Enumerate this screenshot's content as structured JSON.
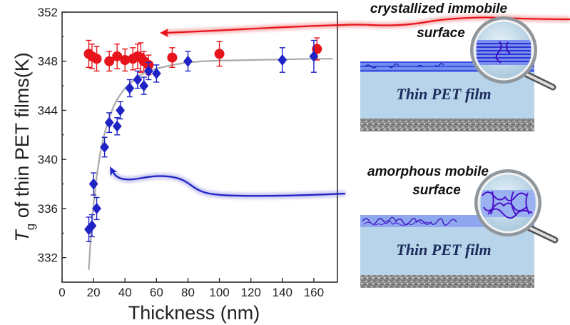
{
  "chart_data": {
    "type": "scatter",
    "xlabel": "Thickness (nm)",
    "ylabel_main": "T",
    "ylabel_sub": "g",
    "ylabel_rest": " of thin PET films(K)",
    "xlim": [
      0,
      175
    ],
    "ylim": [
      330,
      352
    ],
    "xticks": [
      0,
      20,
      40,
      60,
      80,
      100,
      120,
      140,
      160
    ],
    "yticks": [
      332,
      336,
      340,
      344,
      348,
      352
    ],
    "series": [
      {
        "name": "crystallized immobile surface",
        "marker": "circle",
        "color": "#e8141b",
        "points": [
          {
            "x": 17,
            "y": 348.6,
            "err": 1.1
          },
          {
            "x": 19,
            "y": 348.4,
            "err": 1.0
          },
          {
            "x": 22,
            "y": 348.2,
            "err": 1.0
          },
          {
            "x": 30,
            "y": 348.0,
            "err": 0.8
          },
          {
            "x": 35,
            "y": 348.4,
            "err": 1.0
          },
          {
            "x": 40,
            "y": 348.1,
            "err": 0.9
          },
          {
            "x": 45,
            "y": 348.2,
            "err": 0.9
          },
          {
            "x": 48,
            "y": 348.4,
            "err": 1.0
          },
          {
            "x": 50,
            "y": 348.3,
            "err": 1.2
          },
          {
            "x": 52,
            "y": 348.0,
            "err": 0.8
          },
          {
            "x": 55,
            "y": 347.7,
            "err": 0.8
          },
          {
            "x": 70,
            "y": 348.3,
            "err": 0.8
          },
          {
            "x": 100,
            "y": 348.6,
            "err": 1.0
          },
          {
            "x": 162,
            "y": 349.0,
            "err": 0.9
          }
        ]
      },
      {
        "name": "amorphous mobile surface",
        "marker": "diamond",
        "color": "#1f22c4",
        "points": [
          {
            "x": 17,
            "y": 334.3,
            "err": 1.0
          },
          {
            "x": 19,
            "y": 334.6,
            "err": 0.9
          },
          {
            "x": 20,
            "y": 338.0,
            "err": 0.9
          },
          {
            "x": 22,
            "y": 336.0,
            "err": 0.9
          },
          {
            "x": 27,
            "y": 341.0,
            "err": 0.8
          },
          {
            "x": 30,
            "y": 343.0,
            "err": 0.8
          },
          {
            "x": 35,
            "y": 342.7,
            "err": 0.7
          },
          {
            "x": 37,
            "y": 344.0,
            "err": 0.7
          },
          {
            "x": 43,
            "y": 345.8,
            "err": 0.7
          },
          {
            "x": 48,
            "y": 346.5,
            "err": 0.7
          },
          {
            "x": 52,
            "y": 346.0,
            "err": 0.7
          },
          {
            "x": 55,
            "y": 347.2,
            "err": 0.7
          },
          {
            "x": 60,
            "y": 347.0,
            "err": 0.7
          },
          {
            "x": 80,
            "y": 348.0,
            "err": 0.8
          },
          {
            "x": 140,
            "y": 348.1,
            "err": 1.0
          },
          {
            "x": 160,
            "y": 348.4,
            "err": 1.3
          }
        ]
      }
    ],
    "fit_curve": {
      "name": "fit",
      "color": "#a9a9a9",
      "x": [
        17,
        18,
        19,
        20,
        22,
        24,
        26,
        28,
        30,
        33,
        36,
        40,
        45,
        50,
        55,
        60,
        70,
        80,
        90,
        100,
        120,
        140,
        160,
        172
      ],
      "y": [
        331.0,
        333.2,
        334.9,
        336.3,
        338.6,
        340.3,
        341.6,
        342.6,
        343.4,
        344.4,
        345.1,
        345.8,
        346.4,
        346.9,
        347.2,
        347.4,
        347.7,
        347.9,
        348.0,
        348.05,
        348.1,
        348.15,
        348.2,
        348.2
      ]
    }
  },
  "illustration": {
    "top_caption_line1": "crystallized immobile",
    "top_caption_line2": "surface",
    "top_film_label": "Thin PET film",
    "bottom_caption_line1": "amorphous mobile",
    "bottom_caption_line2": "surface",
    "bottom_film_label": "Thin PET film",
    "film_color": "#b7d4ea",
    "crystal_color": "#3a3ae0",
    "amorphous_color": "#5a2ad0",
    "red_arrow_color": "#e8141b",
    "blue_arrow_color": "#1f22c4"
  }
}
